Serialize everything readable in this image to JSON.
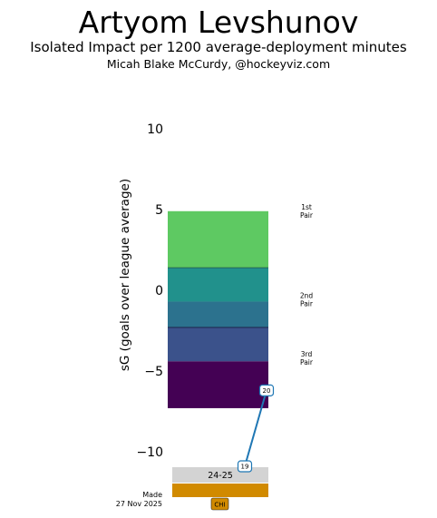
{
  "header": {
    "title": "Artyom Levshunov",
    "subtitle": "Isolated Impact per 1200 average-deployment minutes",
    "byline": "Micah Blake McCurdy, @hockeyviz.com"
  },
  "footer": {
    "made_line1": "Made",
    "made_line2": "27 Nov 2025"
  },
  "colors": {
    "tier_1st": "#5ec962",
    "tier_2nd_upper": "#21918c",
    "tier_2nd_lower": "#2c728e",
    "tier_3rd_upper": "#3b528b",
    "tier_3rd_lower": "#440154",
    "line": "#1f77b4",
    "season_bar": "#d3d3d3",
    "team_bar": "#d18a00"
  },
  "chart_data": {
    "type": "line",
    "ylabel": "sG (goals over league average)",
    "ylim": [
      -13,
      10
    ],
    "yticks": [
      10,
      5,
      0,
      -5,
      -10
    ],
    "ytick_labels": [
      "10",
      "5",
      "0",
      "−5",
      "−10"
    ],
    "bands": [
      {
        "label_line1": "1st",
        "label_line2": "Pair",
        "from": 1.4,
        "to": 4.9,
        "color_key": "tier_1st"
      },
      {
        "label_line1": "2nd",
        "label_line2": "Pair",
        "from": -0.7,
        "to": 1.4,
        "color_key": "tier_2nd_upper"
      },
      {
        "label_line1": "",
        "label_line2": "",
        "from": -2.3,
        "to": -0.7,
        "color_key": "tier_2nd_lower"
      },
      {
        "label_line1": "3rd",
        "label_line2": "Pair",
        "from": -4.4,
        "to": -2.3,
        "color_key": "tier_3rd_upper"
      },
      {
        "label_line1": "",
        "label_line2": "",
        "from": -7.3,
        "to": -4.4,
        "color_key": "tier_3rd_lower"
      }
    ],
    "tier_labels": [
      {
        "line1": "1st",
        "line2": "Pair",
        "y": 4.9
      },
      {
        "line1": "2nd",
        "line2": "Pair",
        "y": -0.6
      },
      {
        "line1": "3rd",
        "line2": "Pair",
        "y": -4.2
      }
    ],
    "series": [
      {
        "points": [
          {
            "label": "19",
            "y": -10.9
          },
          {
            "label": "20",
            "y": -6.2
          }
        ]
      }
    ],
    "seasons": [
      "24-25"
    ],
    "teams": [
      "CHI"
    ]
  }
}
